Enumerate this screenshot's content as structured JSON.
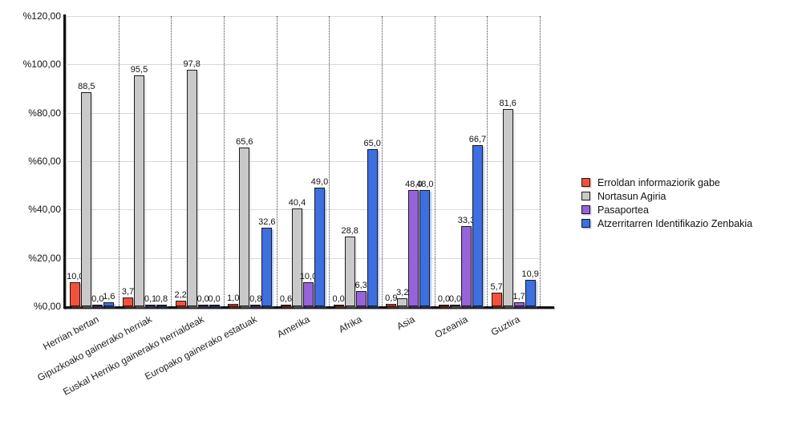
{
  "chart_data": {
    "type": "bar",
    "title": "",
    "xlabel": "",
    "ylabel": "",
    "ylim": [
      0,
      120
    ],
    "y_tick_step": 20,
    "y_tick_labels": [
      "%0,00",
      "%20,00",
      "%40,00",
      "%60,00",
      "%80,00",
      "%100,00",
      "%120,00"
    ],
    "grid": {
      "horizontal": true,
      "vertical_dotted_separators": true
    },
    "legend_position": "right",
    "value_label_decimal_separator": ",",
    "categories": [
      "Herrian bertan",
      "Gipuzkoako gainerako herriak",
      "Euskal Herriko gainerako herrialdeak",
      "Europako gainerako estatuak",
      "Amerika",
      "Afrika",
      "Asia",
      "Ozeania",
      "Guztira"
    ],
    "series": [
      {
        "name": "Erroldan informaziorik gabe",
        "color": "#F4513C",
        "values": [
          10.0,
          3.7,
          2.2,
          1.0,
          0.6,
          0.0,
          0.9,
          0.0,
          5.7
        ]
      },
      {
        "name": "Nortasun Agiria",
        "color": "#C9C9C9",
        "values": [
          88.5,
          95.5,
          97.8,
          65.6,
          40.4,
          28.8,
          3.2,
          0.0,
          81.6
        ]
      },
      {
        "name": "Pasaportea",
        "color": "#9763D9",
        "values": [
          0.0,
          0.1,
          0.0,
          0.8,
          10.0,
          6.3,
          48.0,
          33.3,
          1.7
        ]
      },
      {
        "name": "Atzerritarren Identifikazio Zenbakia",
        "color": "#3E6FE0",
        "values": [
          1.6,
          0.8,
          0.0,
          32.6,
          49.0,
          65.0,
          48.0,
          66.7,
          10.9
        ]
      }
    ]
  }
}
